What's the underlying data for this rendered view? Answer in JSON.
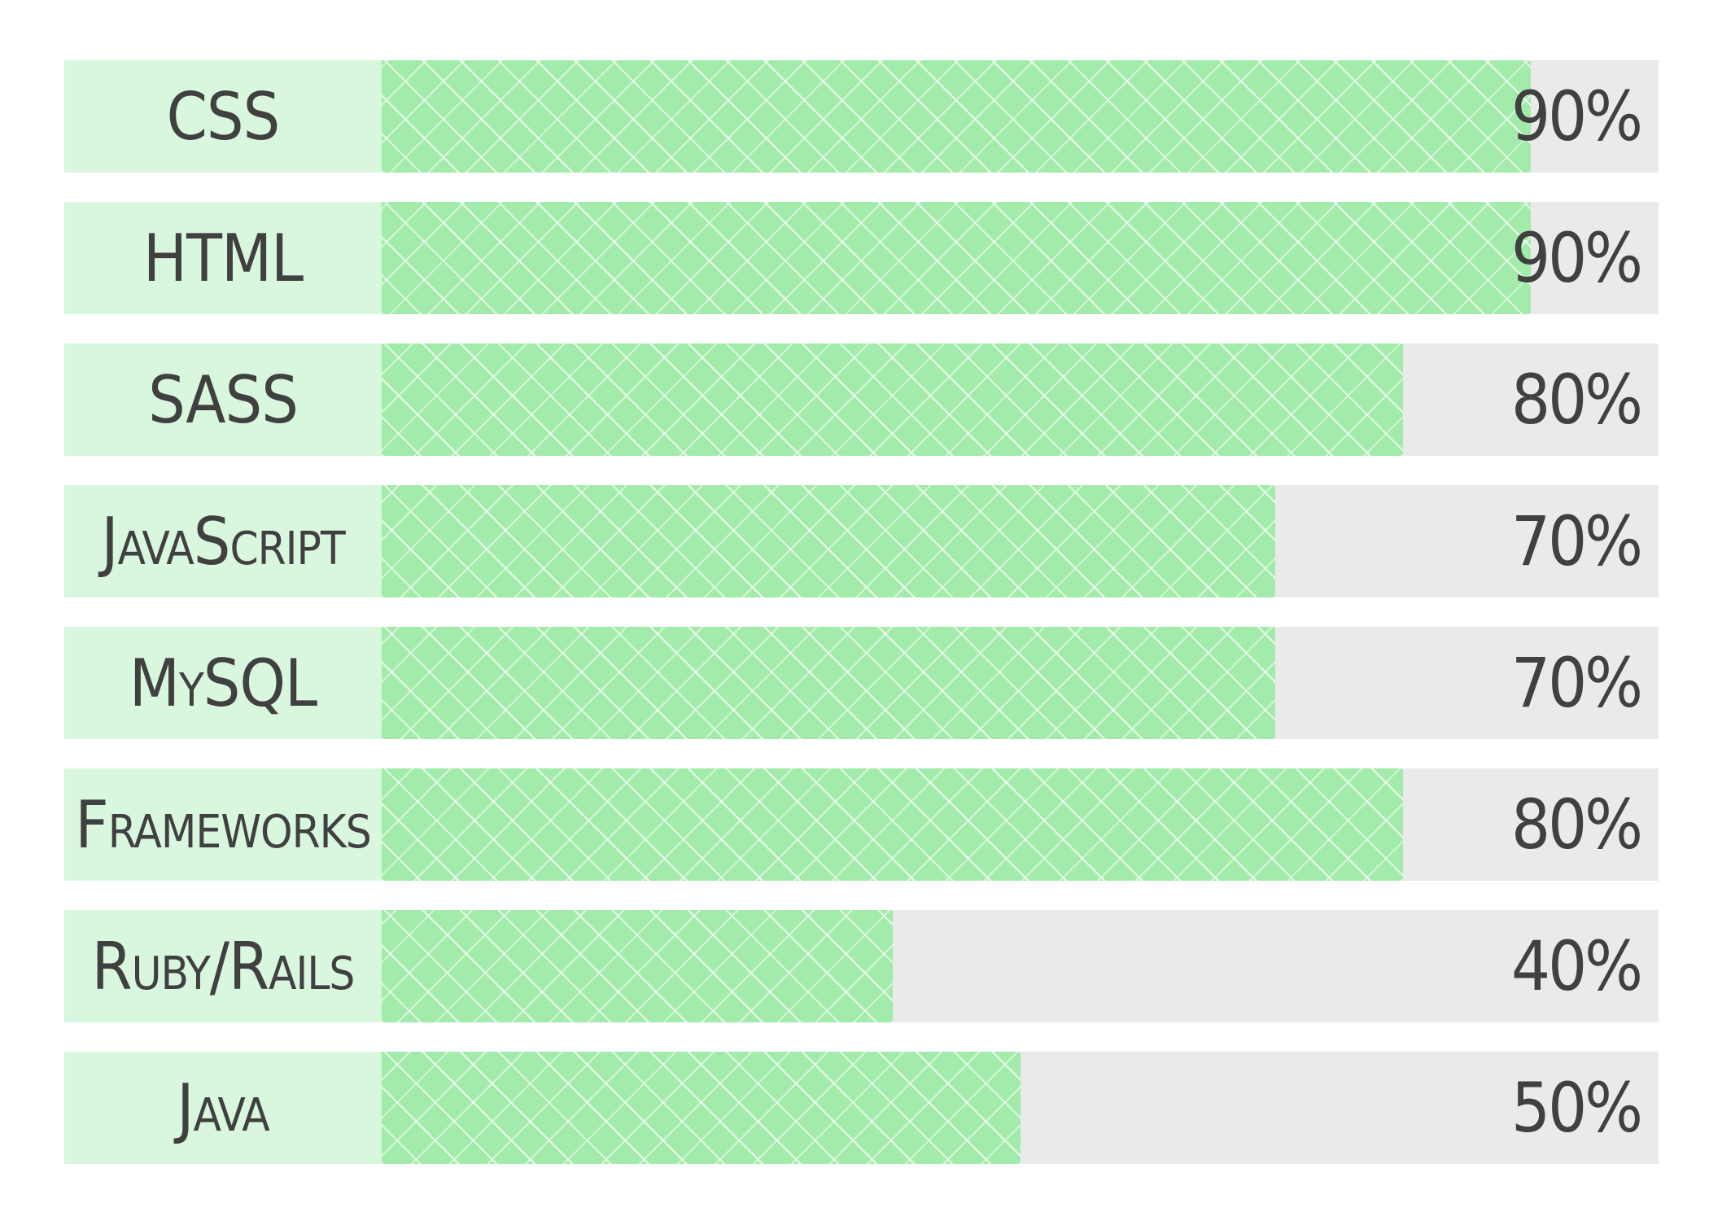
{
  "chart_data": {
    "type": "bar",
    "orientation": "horizontal",
    "categories": [
      "CSS",
      "HTML",
      "SASS",
      "JavaScript",
      "MySQL",
      "Frameworks",
      "Ruby/Rails",
      "Java"
    ],
    "values": [
      90,
      90,
      80,
      70,
      70,
      80,
      40,
      50
    ],
    "value_labels": [
      "90%",
      "90%",
      "80%",
      "70%",
      "70%",
      "80%",
      "40%",
      "50%"
    ],
    "xlim": [
      0,
      100
    ],
    "grid": false,
    "legend": "none",
    "title": "",
    "xlabel": "",
    "ylabel": ""
  },
  "colors": {
    "fill": "#a2ebaa",
    "track": "#eaeaea",
    "label_bg": "#d9f6de",
    "text": "#404040"
  }
}
